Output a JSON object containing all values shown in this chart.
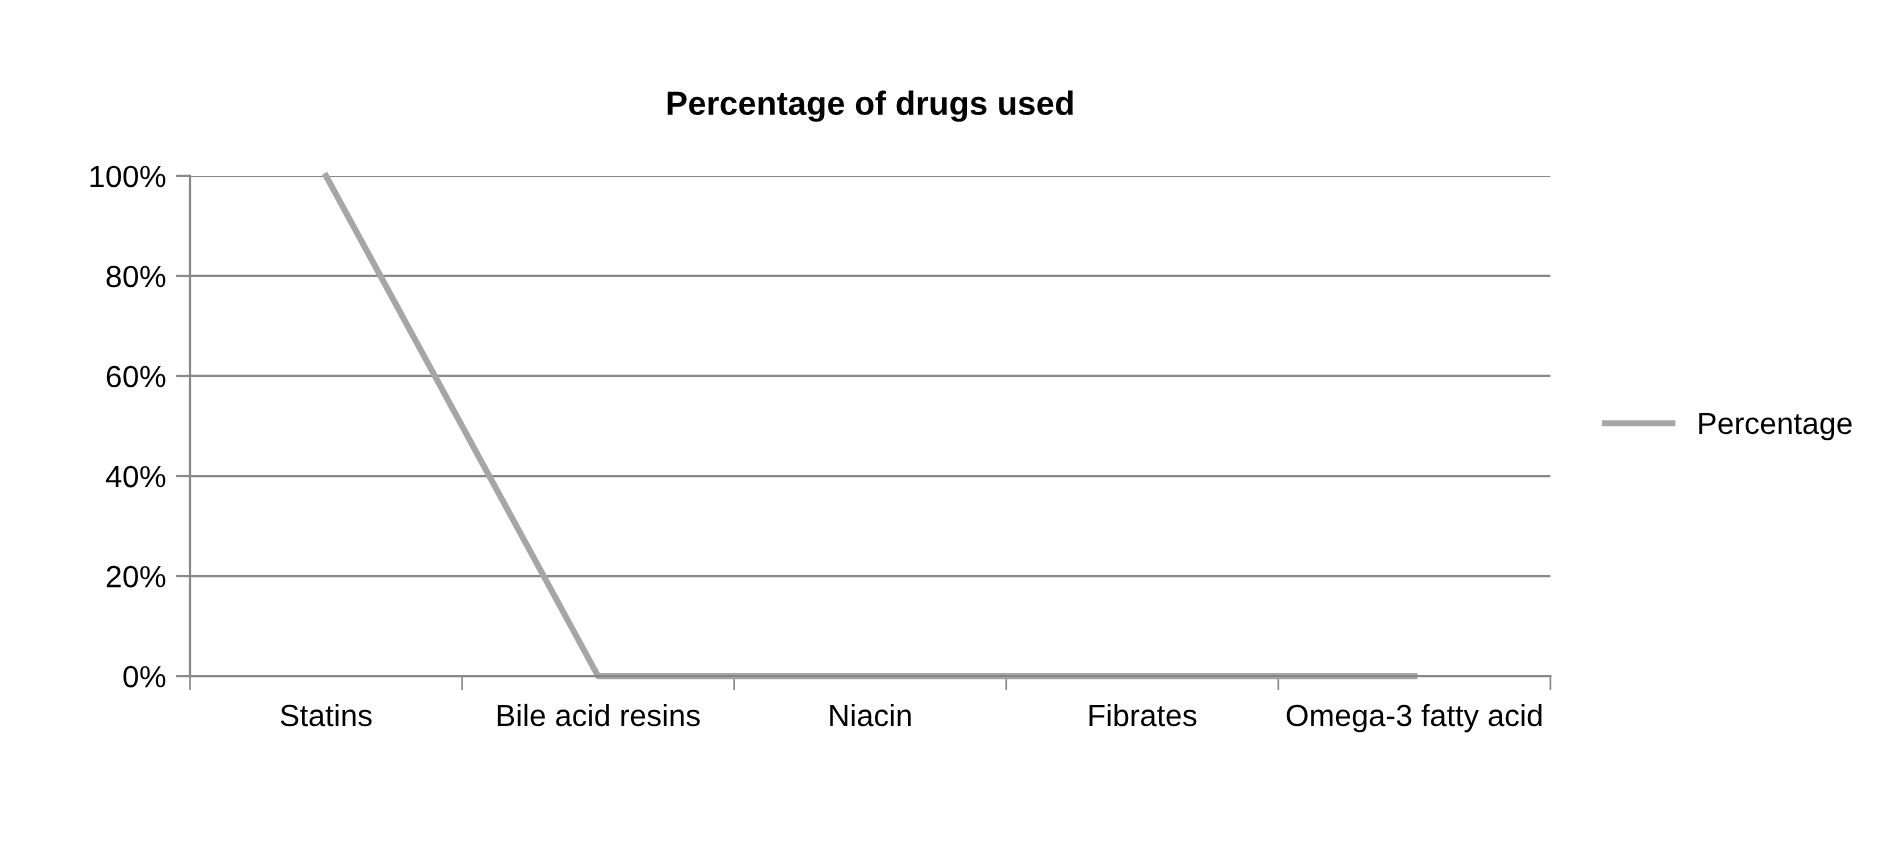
{
  "chart_data": {
    "type": "line",
    "title": "Percentage of drugs used",
    "categories": [
      "Statins",
      "Bile acid resins",
      "Niacin",
      "Fibrates",
      "Omega-3 fatty acid"
    ],
    "series": [
      {
        "name": "Percentage",
        "color": "#a6a6a6",
        "values": [
          100,
          0,
          0,
          0,
          0
        ]
      }
    ],
    "ylim": [
      0,
      100
    ],
    "yticks": [
      {
        "value": 0,
        "label": "0%"
      },
      {
        "value": 20,
        "label": "20%"
      },
      {
        "value": 40,
        "label": "40%"
      },
      {
        "value": 60,
        "label": "60%"
      },
      {
        "value": 80,
        "label": "80%"
      },
      {
        "value": 100,
        "label": "100%"
      }
    ],
    "grid": "y",
    "legend": "right",
    "marker": "none",
    "line_style": "solid"
  }
}
